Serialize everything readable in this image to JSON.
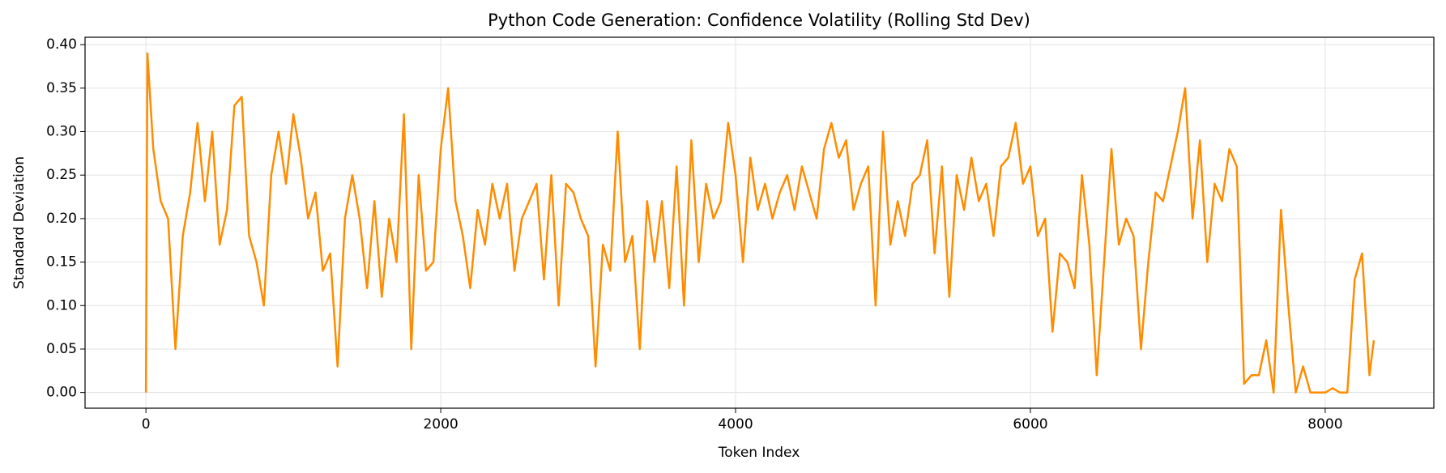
{
  "chart_data": {
    "type": "line",
    "title": "Python Code Generation: Confidence Volatility (Rolling Std Dev)",
    "xlabel": "Token Index",
    "ylabel": "Standard Deviation",
    "x": [
      0,
      10,
      50,
      100,
      150,
      200,
      250,
      300,
      350,
      400,
      450,
      500,
      550,
      600,
      650,
      700,
      750,
      800,
      850,
      900,
      950,
      1000,
      1050,
      1100,
      1150,
      1200,
      1250,
      1300,
      1350,
      1400,
      1450,
      1500,
      1550,
      1600,
      1650,
      1700,
      1750,
      1800,
      1850,
      1900,
      1950,
      2000,
      2050,
      2100,
      2150,
      2200,
      2250,
      2300,
      2350,
      2400,
      2450,
      2500,
      2550,
      2600,
      2650,
      2700,
      2750,
      2800,
      2850,
      2900,
      2950,
      3000,
      3050,
      3100,
      3150,
      3200,
      3250,
      3300,
      3350,
      3400,
      3450,
      3500,
      3550,
      3600,
      3650,
      3700,
      3750,
      3800,
      3850,
      3900,
      3950,
      4000,
      4050,
      4100,
      4150,
      4200,
      4250,
      4300,
      4350,
      4400,
      4450,
      4500,
      4550,
      4600,
      4650,
      4700,
      4750,
      4800,
      4850,
      4900,
      4950,
      5000,
      5050,
      5100,
      5150,
      5200,
      5250,
      5300,
      5350,
      5400,
      5450,
      5500,
      5550,
      5600,
      5650,
      5700,
      5750,
      5800,
      5850,
      5900,
      5950,
      6000,
      6050,
      6100,
      6150,
      6200,
      6250,
      6300,
      6350,
      6400,
      6450,
      6500,
      6550,
      6600,
      6650,
      6700,
      6750,
      6800,
      6850,
      6900,
      6950,
      7000,
      7050,
      7100,
      7150,
      7200,
      7250,
      7300,
      7350,
      7400,
      7450,
      7500,
      7550,
      7600,
      7650,
      7700,
      7750,
      7800,
      7850,
      7900,
      7950,
      8000,
      8050,
      8100,
      8150,
      8200,
      8250,
      8300,
      8330
    ],
    "series": [
      {
        "name": "Rolling Std Dev",
        "color": "#ff8c00",
        "values": [
          0.0,
          0.39,
          0.28,
          0.22,
          0.2,
          0.05,
          0.18,
          0.23,
          0.31,
          0.22,
          0.3,
          0.17,
          0.21,
          0.33,
          0.34,
          0.18,
          0.15,
          0.1,
          0.25,
          0.3,
          0.24,
          0.32,
          0.27,
          0.2,
          0.23,
          0.14,
          0.16,
          0.03,
          0.2,
          0.25,
          0.2,
          0.12,
          0.22,
          0.11,
          0.2,
          0.15,
          0.32,
          0.05,
          0.25,
          0.14,
          0.15,
          0.28,
          0.35,
          0.22,
          0.18,
          0.12,
          0.21,
          0.17,
          0.24,
          0.2,
          0.24,
          0.14,
          0.2,
          0.22,
          0.24,
          0.13,
          0.25,
          0.1,
          0.24,
          0.23,
          0.2,
          0.18,
          0.03,
          0.17,
          0.14,
          0.3,
          0.15,
          0.18,
          0.05,
          0.22,
          0.15,
          0.22,
          0.12,
          0.26,
          0.1,
          0.29,
          0.15,
          0.24,
          0.2,
          0.22,
          0.31,
          0.25,
          0.15,
          0.27,
          0.21,
          0.24,
          0.2,
          0.23,
          0.25,
          0.21,
          0.26,
          0.23,
          0.2,
          0.28,
          0.31,
          0.27,
          0.29,
          0.21,
          0.24,
          0.26,
          0.1,
          0.3,
          0.17,
          0.22,
          0.18,
          0.24,
          0.25,
          0.29,
          0.16,
          0.26,
          0.11,
          0.25,
          0.21,
          0.27,
          0.22,
          0.24,
          0.18,
          0.26,
          0.27,
          0.31,
          0.24,
          0.26,
          0.18,
          0.2,
          0.07,
          0.16,
          0.15,
          0.12,
          0.25,
          0.17,
          0.02,
          0.15,
          0.28,
          0.17,
          0.2,
          0.18,
          0.05,
          0.15,
          0.23,
          0.22,
          0.26,
          0.3,
          0.35,
          0.2,
          0.29,
          0.15,
          0.24,
          0.22,
          0.28,
          0.26,
          0.01,
          0.02,
          0.02,
          0.06,
          0.0,
          0.21,
          0.1,
          0.0,
          0.03,
          0.0,
          0.0,
          0.0,
          0.005,
          0.0,
          0.0,
          0.13,
          0.16,
          0.02,
          0.06
        ]
      }
    ],
    "xlim": [
      -413,
      8737
    ],
    "ylim": [
      -0.018,
      0.4085
    ],
    "xticks": [
      0,
      2000,
      4000,
      6000,
      8000
    ],
    "yticks": [
      {
        "value": 0,
        "label": "0.00"
      },
      {
        "value": 0.05,
        "label": "0.05"
      },
      {
        "value": 0.1,
        "label": "0.10"
      },
      {
        "value": 0.15,
        "label": "0.15"
      },
      {
        "value": 0.2,
        "label": "0.20"
      },
      {
        "value": 0.25,
        "label": "0.25"
      },
      {
        "value": 0.3,
        "label": "0.30"
      },
      {
        "value": 0.35,
        "label": "0.35"
      },
      {
        "value": 0.4,
        "label": "0.40"
      }
    ],
    "grid": true
  }
}
